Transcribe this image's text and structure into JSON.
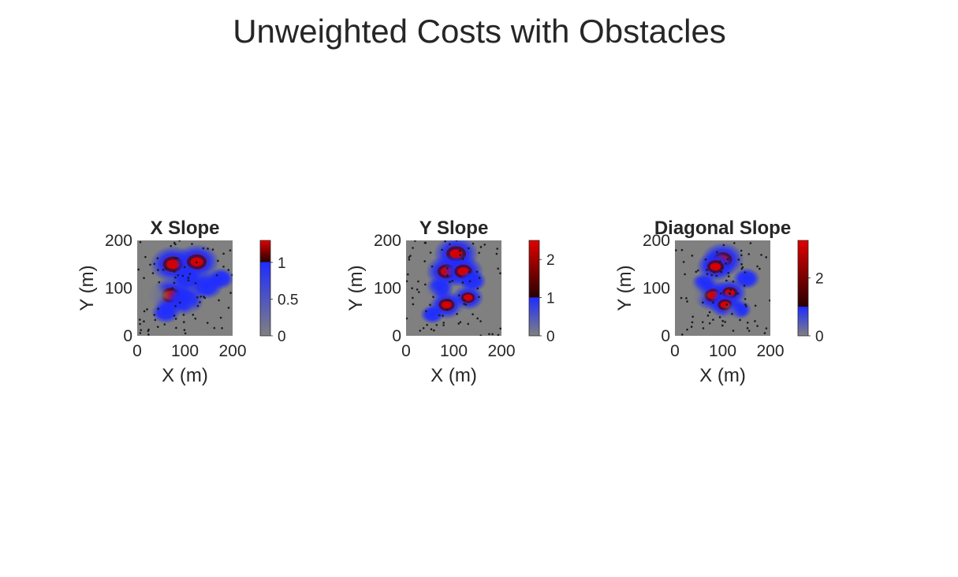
{
  "figure": {
    "title": "Unweighted Costs with Obstacles"
  },
  "colors": {
    "background": "#808080",
    "blue": "#1f2cff",
    "red": "#e00000",
    "dark_red": "#2a0000",
    "obstacle": "#1a1a1a",
    "text": "#262626"
  },
  "chart_data": [
    {
      "type": "heatmap",
      "title": "X Slope",
      "xlabel": "X (m)",
      "ylabel": "Y (m)",
      "xlim": [
        0,
        200
      ],
      "ylim": [
        0,
        200
      ],
      "xticks": [
        "0",
        "100",
        "200"
      ],
      "yticks": [
        "0",
        "100",
        "200"
      ],
      "colorbar": {
        "range": [
          0,
          1.3
        ],
        "ticks": [
          "0",
          "0.5",
          "1"
        ],
        "tick_values": [
          0,
          0.5,
          1
        ],
        "colormap": [
          "gray",
          "blue",
          "dark red",
          "red"
        ],
        "breakpoints": [
          0,
          1.0,
          1.01,
          1.3
        ]
      },
      "features": [
        {
          "x": 75,
          "y": 150,
          "intensity": 1.25
        },
        {
          "x": 125,
          "y": 155,
          "intensity": 1.2
        },
        {
          "x": 70,
          "y": 85,
          "intensity": 1.15
        },
        {
          "x": 100,
          "y": 75,
          "intensity": 0.9
        },
        {
          "x": 145,
          "y": 105,
          "intensity": 0.7
        },
        {
          "x": 105,
          "y": 120,
          "intensity": 0.6
        },
        {
          "x": 60,
          "y": 50,
          "intensity": 0.45
        },
        {
          "x": 175,
          "y": 120,
          "intensity": 0.35
        }
      ]
    },
    {
      "type": "heatmap",
      "title": "Y Slope",
      "xlabel": "X (m)",
      "ylabel": "Y (m)",
      "xlim": [
        0,
        200
      ],
      "ylim": [
        0,
        200
      ],
      "xticks": [
        "0",
        "100",
        "200"
      ],
      "yticks": [
        "0",
        "100",
        "200"
      ],
      "colorbar": {
        "range": [
          0,
          2.5
        ],
        "ticks": [
          "0",
          "1",
          "2"
        ],
        "tick_values": [
          0,
          1,
          2
        ],
        "colormap": [
          "gray",
          "blue",
          "dark red",
          "red"
        ],
        "breakpoints": [
          0,
          1.0,
          1.01,
          2.5
        ]
      },
      "features": [
        {
          "x": 105,
          "y": 172,
          "intensity": 2.3
        },
        {
          "x": 85,
          "y": 135,
          "intensity": 2.0
        },
        {
          "x": 120,
          "y": 135,
          "intensity": 1.9
        },
        {
          "x": 85,
          "y": 65,
          "intensity": 1.5
        },
        {
          "x": 130,
          "y": 80,
          "intensity": 1.1
        },
        {
          "x": 70,
          "y": 100,
          "intensity": 0.8
        },
        {
          "x": 140,
          "y": 115,
          "intensity": 0.7
        },
        {
          "x": 55,
          "y": 45,
          "intensity": 0.4
        }
      ]
    },
    {
      "type": "heatmap",
      "title": "Diagonal Slope",
      "xlabel": "X (m)",
      "ylabel": "Y (m)",
      "xlim": [
        0,
        200
      ],
      "ylim": [
        0,
        200
      ],
      "xticks": [
        "0",
        "100",
        "200"
      ],
      "yticks": [
        "0",
        "100",
        "200"
      ],
      "colorbar": {
        "range": [
          0,
          3.3
        ],
        "ticks": [
          "0",
          "2"
        ],
        "tick_values": [
          0,
          2
        ],
        "colormap": [
          "gray",
          "blue",
          "dark red",
          "red"
        ],
        "breakpoints": [
          0,
          1.0,
          1.01,
          3.3
        ]
      },
      "features": [
        {
          "x": 100,
          "y": 160,
          "intensity": 2.8
        },
        {
          "x": 85,
          "y": 145,
          "intensity": 2.2
        },
        {
          "x": 80,
          "y": 85,
          "intensity": 2.4
        },
        {
          "x": 115,
          "y": 90,
          "intensity": 1.8
        },
        {
          "x": 105,
          "y": 65,
          "intensity": 1.6
        },
        {
          "x": 150,
          "y": 120,
          "intensity": 0.9
        },
        {
          "x": 60,
          "y": 110,
          "intensity": 0.7
        },
        {
          "x": 135,
          "y": 55,
          "intensity": 0.6
        }
      ]
    }
  ]
}
